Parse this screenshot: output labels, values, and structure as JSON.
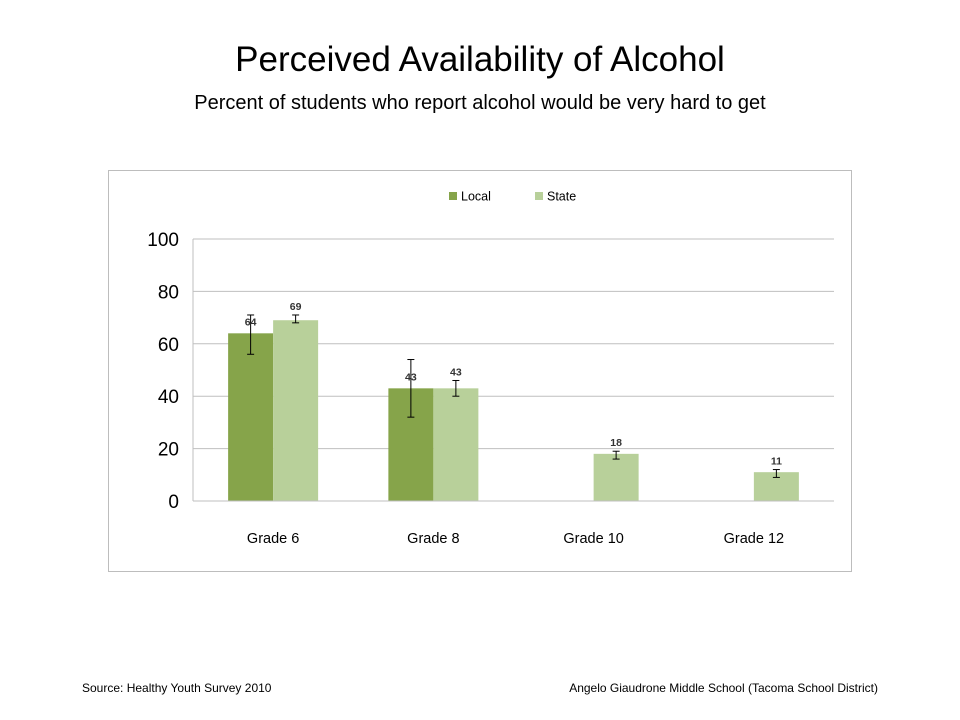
{
  "header": {
    "title": "Perceived Availability of Alcohol",
    "subtitle": "Percent of students who report alcohol would be very hard to get"
  },
  "footer": {
    "source": "Source: Healthy Youth Survey 2010",
    "school": "Angelo Giaudrone Middle School (Tacoma School District)"
  },
  "colors": {
    "local": "#86a44a",
    "state": "#b8d09a",
    "grid": "#bfbfbf"
  },
  "chart_data": {
    "type": "bar",
    "title": "",
    "xlabel": "",
    "ylabel": "",
    "ylim": [
      0,
      100
    ],
    "yticks": [
      "0",
      "20",
      "40",
      "60",
      "80",
      "100"
    ],
    "grid": true,
    "legend_position": "top",
    "categories": [
      "Grade 6",
      "Grade 8",
      "Grade 10",
      "Grade 12"
    ],
    "series": [
      {
        "name": "Local",
        "values": [
          64,
          43,
          null,
          null
        ],
        "labels": [
          "64",
          "43",
          "",
          ""
        ],
        "error_low": [
          56,
          32,
          null,
          null
        ],
        "error_high": [
          71,
          54,
          null,
          null
        ]
      },
      {
        "name": "State",
        "values": [
          69,
          43,
          18,
          11
        ],
        "labels": [
          "69",
          "43",
          "18",
          "11"
        ],
        "error_low": [
          68,
          40,
          16,
          9
        ],
        "error_high": [
          71,
          46,
          19,
          12
        ]
      }
    ]
  }
}
